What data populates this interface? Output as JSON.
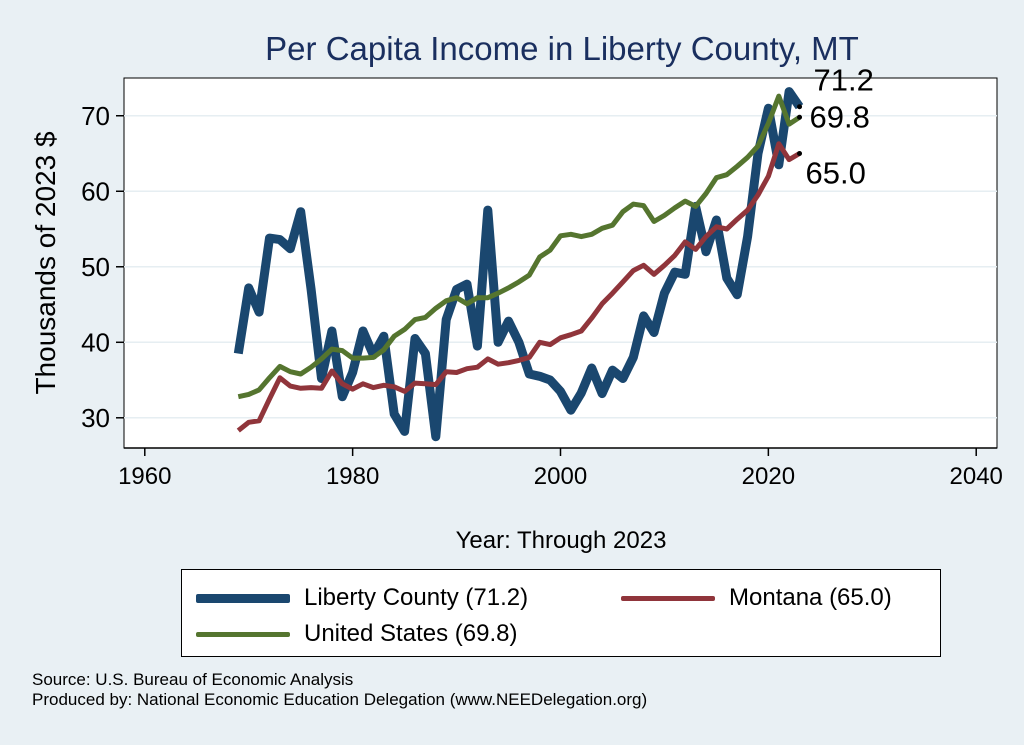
{
  "chart_data": {
    "type": "line",
    "title": "Per Capita Income in Liberty County, MT",
    "xlabel": "Year: Through 2023",
    "ylabel": "Thousands of 2023 $",
    "xlim": [
      1958,
      2042
    ],
    "ylim": [
      26,
      75
    ],
    "xticks": [
      1960,
      1980,
      2000,
      2020,
      2040
    ],
    "yticks": [
      30,
      40,
      50,
      60,
      70
    ],
    "grid": "horizontal",
    "series": [
      {
        "name": "Liberty County",
        "legend": "Liberty County (71.2)",
        "color": "#1a476f",
        "width": 9,
        "end_label": "71.2",
        "x": [
          1969,
          1970,
          1971,
          1972,
          1973,
          1974,
          1975,
          1976,
          1977,
          1978,
          1979,
          1980,
          1981,
          1982,
          1983,
          1984,
          1985,
          1986,
          1987,
          1988,
          1989,
          1990,
          1991,
          1992,
          1993,
          1994,
          1995,
          1996,
          1997,
          1998,
          1999,
          2000,
          2001,
          2002,
          2003,
          2004,
          2005,
          2006,
          2007,
          2008,
          2009,
          2010,
          2011,
          2012,
          2013,
          2014,
          2015,
          2016,
          2017,
          2018,
          2019,
          2020,
          2021,
          2022,
          2023
        ],
        "y": [
          38.5,
          47.2,
          44.0,
          53.8,
          53.6,
          52.4,
          57.3,
          47.0,
          35.2,
          41.5,
          32.8,
          36.0,
          41.5,
          38.3,
          40.8,
          30.5,
          28.2,
          40.5,
          38.5,
          27.5,
          43.0,
          47.0,
          47.7,
          39.5,
          57.5,
          40.0,
          42.8,
          40.0,
          35.8,
          35.5,
          35.0,
          33.5,
          31.0,
          33.3,
          36.6,
          33.2,
          36.3,
          35.2,
          38.0,
          43.5,
          41.3,
          46.5,
          49.3,
          49.0,
          58.0,
          52.0,
          56.2,
          48.5,
          46.3,
          54.0,
          65.0,
          71.0,
          63.5,
          73.2,
          71.2
        ]
      },
      {
        "name": "Montana",
        "legend": "Montana (65.0)",
        "color": "#90353b",
        "width": 5,
        "end_label": "65.0",
        "x": [
          1969,
          1970,
          1971,
          1972,
          1973,
          1974,
          1975,
          1976,
          1977,
          1978,
          1979,
          1980,
          1981,
          1982,
          1983,
          1984,
          1985,
          1986,
          1987,
          1988,
          1989,
          1990,
          1991,
          1992,
          1993,
          1994,
          1995,
          1996,
          1997,
          1998,
          1999,
          2000,
          2001,
          2002,
          2003,
          2004,
          2005,
          2006,
          2007,
          2008,
          2009,
          2010,
          2011,
          2012,
          2013,
          2014,
          2015,
          2016,
          2017,
          2018,
          2019,
          2020,
          2021,
          2022,
          2023
        ],
        "y": [
          28.3,
          29.4,
          29.6,
          32.5,
          35.3,
          34.2,
          33.9,
          34.0,
          33.9,
          36.2,
          34.5,
          33.8,
          34.5,
          34.0,
          34.3,
          34.1,
          33.5,
          34.6,
          34.5,
          34.4,
          36.1,
          36.0,
          36.5,
          36.7,
          37.8,
          37.1,
          37.3,
          37.6,
          38.0,
          40.0,
          39.7,
          40.6,
          41.0,
          41.5,
          43.2,
          45.1,
          46.5,
          48.0,
          49.5,
          50.2,
          49.0,
          50.2,
          51.5,
          53.3,
          52.3,
          54.0,
          55.3,
          55.0,
          56.3,
          57.5,
          59.5,
          62.0,
          66.3,
          64.2,
          65.0
        ]
      },
      {
        "name": "United States",
        "legend": "United States (69.8)",
        "color": "#55752f",
        "width": 5,
        "end_label": "69.8",
        "x": [
          1969,
          1970,
          1971,
          1972,
          1973,
          1974,
          1975,
          1976,
          1977,
          1978,
          1979,
          1980,
          1981,
          1982,
          1983,
          1984,
          1985,
          1986,
          1987,
          1988,
          1989,
          1990,
          1991,
          1992,
          1993,
          1994,
          1995,
          1996,
          1997,
          1998,
          1999,
          2000,
          2001,
          2002,
          2003,
          2004,
          2005,
          2006,
          2007,
          2008,
          2009,
          2010,
          2011,
          2012,
          2013,
          2014,
          2015,
          2016,
          2017,
          2018,
          2019,
          2020,
          2021,
          2022,
          2023
        ],
        "y": [
          32.8,
          33.1,
          33.7,
          35.3,
          36.8,
          36.1,
          35.8,
          36.7,
          37.8,
          39.1,
          38.9,
          37.9,
          37.9,
          38.0,
          39.0,
          40.8,
          41.7,
          43.0,
          43.3,
          44.5,
          45.5,
          45.9,
          45.1,
          45.9,
          45.9,
          46.5,
          47.2,
          48.0,
          48.9,
          51.3,
          52.2,
          54.1,
          54.3,
          54.0,
          54.3,
          55.1,
          55.5,
          57.3,
          58.3,
          58.1,
          56.0,
          56.8,
          57.8,
          58.7,
          58.0,
          59.7,
          61.8,
          62.2,
          63.3,
          64.5,
          66.0,
          69.0,
          72.6,
          68.9,
          69.8
        ]
      }
    ],
    "legend_placement": "bottom"
  },
  "source_lines": [
    "Source: U.S. Bureau of Economic Analysis",
    "Produced by: National Economic Education Delegation (www.NEEDelegation.org)"
  ]
}
